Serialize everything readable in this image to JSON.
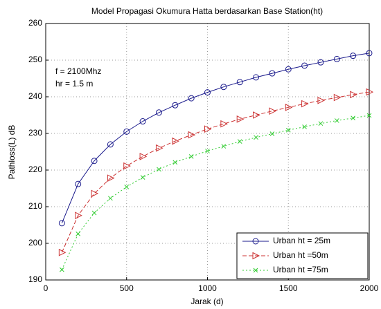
{
  "chart_data": {
    "type": "line",
    "title": "Model Propagasi Okumura Hatta berdasarkan Base Station(ht)",
    "x_label": "Jarak (d)",
    "y_label": "Pathloss(L) dB",
    "annotations": [
      "f = 2100Mhz",
      "hr = 1.5 m"
    ],
    "x": [
      100,
      200,
      300,
      400,
      500,
      600,
      700,
      800,
      900,
      1000,
      1100,
      1200,
      1300,
      1400,
      1500,
      1600,
      1700,
      1800,
      1900,
      2000
    ],
    "series": [
      {
        "name": "Urban ht = 25m",
        "color": "#1a1a8c",
        "line": "solid",
        "marker": "o",
        "values": [
          205.5,
          216.2,
          222.5,
          227.0,
          230.5,
          233.3,
          235.7,
          237.7,
          239.6,
          241.2,
          242.7,
          244.0,
          245.3,
          246.4,
          247.5,
          248.5,
          249.4,
          250.3,
          251.2,
          251.9
        ]
      },
      {
        "name": "Urban ht =50m",
        "color": "#cc3333",
        "line": "dashed",
        "marker": ">",
        "values": [
          197.5,
          207.6,
          213.6,
          217.8,
          221.1,
          223.7,
          226.0,
          227.9,
          229.6,
          231.2,
          232.6,
          233.9,
          235.0,
          236.1,
          237.1,
          238.1,
          239.0,
          239.8,
          240.6,
          241.3
        ]
      },
      {
        "name": "Urban ht =75m",
        "color": "#33cc33",
        "line": "dotted",
        "marker": "x",
        "values": [
          192.8,
          202.6,
          208.3,
          212.3,
          215.4,
          218.0,
          220.2,
          222.1,
          223.7,
          225.2,
          226.5,
          227.8,
          228.9,
          229.9,
          230.9,
          231.8,
          232.7,
          233.5,
          234.2,
          234.9
        ]
      }
    ],
    "xlim": [
      0,
      2000
    ],
    "xticks": [
      0,
      500,
      1000,
      1500,
      2000
    ],
    "ylim": [
      190,
      260
    ],
    "yticks": [
      190,
      200,
      210,
      220,
      230,
      240,
      250,
      260
    ],
    "grid": true,
    "legend": "southeast"
  }
}
